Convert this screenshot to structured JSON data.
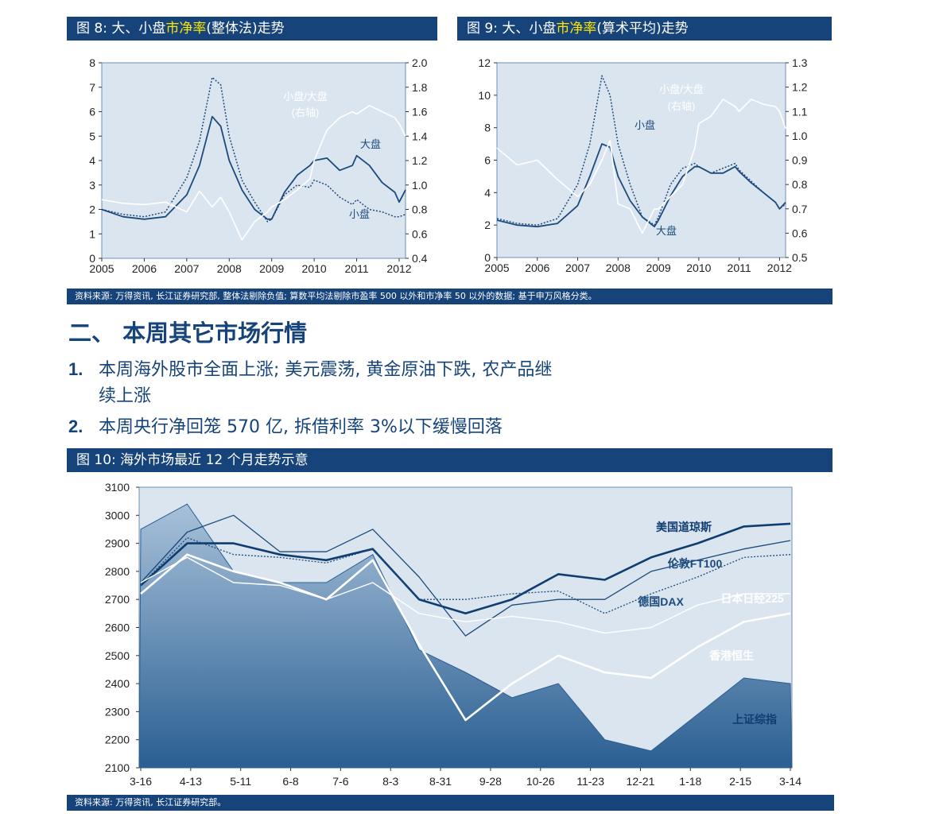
{
  "colors": {
    "bar_bg": "#16447a",
    "highlight": "#ffe600",
    "plot_bg": "#dbe5f0",
    "line_dark": "#1c4a7d",
    "line_white": "#ffffff"
  },
  "fig8": {
    "title_pre": "图 8: 大、小盘",
    "title_hl": "市净率",
    "title_post": "(整体法)走势",
    "chart_data": {
      "type": "line",
      "x_ticks": [
        "2005",
        "2006",
        "2007",
        "2008",
        "2009",
        "2010",
        "2011",
        "2012"
      ],
      "y_left_ticks": [
        "0",
        "1",
        "2",
        "3",
        "4",
        "5",
        "6",
        "7",
        "8"
      ],
      "y_right_ticks": [
        "0.4",
        "0.6",
        "0.8",
        "1.0",
        "1.2",
        "1.4",
        "1.6",
        "1.8",
        "2.0"
      ],
      "ylim_left": [
        0,
        8
      ],
      "ylim_right": [
        0.4,
        2.0
      ],
      "annotations": {
        "ratio": "小盘/大盘",
        "ratio_axis": "(右轴)",
        "large": "大盘",
        "small": "小盘"
      },
      "series": [
        {
          "name": "大盘",
          "axis": "left",
          "style": "solid",
          "x": [
            2005,
            2005.5,
            2006,
            2006.5,
            2007,
            2007.3,
            2007.6,
            2007.8,
            2008,
            2008.3,
            2008.6,
            2008.9,
            2009,
            2009.3,
            2009.6,
            2009.9,
            2010,
            2010.3,
            2010.6,
            2010.9,
            2011,
            2011.3,
            2011.6,
            2011.9,
            2012,
            2012.15
          ],
          "y": [
            2.0,
            1.7,
            1.6,
            1.7,
            2.6,
            3.8,
            5.8,
            5.4,
            4.0,
            2.8,
            2.0,
            1.6,
            1.6,
            2.7,
            3.4,
            3.8,
            4.0,
            4.1,
            3.6,
            3.8,
            4.2,
            3.8,
            3.1,
            2.7,
            2.3,
            2.8
          ]
        },
        {
          "name": "小盘",
          "axis": "left",
          "style": "dotted",
          "x": [
            2005,
            2005.5,
            2006,
            2006.5,
            2007,
            2007.3,
            2007.6,
            2007.8,
            2008,
            2008.3,
            2008.6,
            2008.9,
            2009,
            2009.3,
            2009.6,
            2009.9,
            2010,
            2010.3,
            2010.6,
            2010.9,
            2011,
            2011.3,
            2011.6,
            2011.9,
            2012,
            2012.15
          ],
          "y": [
            2.0,
            1.8,
            1.7,
            1.9,
            3.3,
            4.8,
            7.4,
            7.1,
            5.0,
            3.2,
            2.3,
            1.5,
            1.6,
            2.6,
            3.0,
            2.9,
            3.2,
            3.0,
            2.5,
            2.2,
            2.4,
            2.0,
            1.9,
            1.7,
            1.7,
            1.8
          ]
        },
        {
          "name": "小盘/大盘",
          "axis": "right",
          "style": "white",
          "x": [
            2005,
            2005.5,
            2006,
            2006.5,
            2007,
            2007.3,
            2007.6,
            2007.8,
            2008,
            2008.3,
            2008.6,
            2008.9,
            2009,
            2009.3,
            2009.6,
            2009.9,
            2010,
            2010.3,
            2010.6,
            2010.9,
            2011,
            2011.3,
            2011.6,
            2011.9,
            2012,
            2012.15
          ],
          "y": [
            0.88,
            0.85,
            0.84,
            0.86,
            0.78,
            0.95,
            0.82,
            0.9,
            0.78,
            0.55,
            0.7,
            0.78,
            0.82,
            0.88,
            0.96,
            1.05,
            1.2,
            1.45,
            1.55,
            1.6,
            1.58,
            1.65,
            1.6,
            1.55,
            1.5,
            1.4
          ]
        }
      ]
    }
  },
  "fig9": {
    "title_pre": "图 9: 大、小盘",
    "title_hl": "市净率",
    "title_post": "(算术平均)走势",
    "chart_data": {
      "type": "line",
      "x_ticks": [
        "2005",
        "2006",
        "2007",
        "2008",
        "2009",
        "2010",
        "2011",
        "2012"
      ],
      "y_left_ticks": [
        "0",
        "2",
        "4",
        "6",
        "8",
        "10",
        "12"
      ],
      "y_right_ticks": [
        "0.5",
        "0.6",
        "0.7",
        "0.8",
        "0.9",
        "1.0",
        "1.1",
        "1.2",
        "1.3"
      ],
      "ylim_left": [
        0,
        12
      ],
      "ylim_right": [
        0.5,
        1.3
      ],
      "annotations": {
        "ratio": "小盘/大盘",
        "ratio_axis": "(右轴)",
        "small": "小盘",
        "large": "大盘"
      },
      "series": [
        {
          "name": "大盘",
          "axis": "left",
          "style": "solid",
          "x": [
            2005,
            2005.5,
            2006,
            2006.5,
            2007,
            2007.3,
            2007.6,
            2007.8,
            2008,
            2008.3,
            2008.6,
            2008.9,
            2009,
            2009.3,
            2009.6,
            2009.9,
            2010,
            2010.3,
            2010.6,
            2010.9,
            2011,
            2011.3,
            2011.6,
            2011.9,
            2012,
            2012.15
          ],
          "y": [
            2.3,
            2.0,
            1.9,
            2.1,
            3.2,
            5.0,
            7.0,
            6.8,
            5.0,
            3.5,
            2.5,
            1.9,
            2.3,
            3.8,
            5.0,
            5.6,
            5.6,
            5.2,
            5.2,
            5.6,
            5.3,
            4.6,
            4.0,
            3.4,
            3.0,
            3.4
          ]
        },
        {
          "name": "小盘",
          "axis": "left",
          "style": "dotted",
          "x": [
            2005,
            2005.5,
            2006,
            2006.5,
            2007,
            2007.3,
            2007.6,
            2007.8,
            2008,
            2008.3,
            2008.6,
            2008.9,
            2009,
            2009.3,
            2009.6,
            2009.9,
            2010,
            2010.3,
            2010.6,
            2010.9,
            2011,
            2011.3,
            2011.6,
            2011.9,
            2012,
            2012.15
          ],
          "y": [
            2.4,
            2.1,
            2.0,
            2.4,
            4.5,
            7.0,
            11.2,
            10.0,
            7.0,
            4.5,
            2.5,
            2.0,
            2.5,
            4.5,
            5.5,
            5.8,
            5.6,
            5.2,
            5.5,
            5.8,
            5.4,
            4.7,
            4.0,
            3.4,
            3.0,
            3.3
          ]
        },
        {
          "name": "小盘/大盘",
          "axis": "right",
          "style": "white",
          "x": [
            2005,
            2005.5,
            2006,
            2006.5,
            2007,
            2007.3,
            2007.6,
            2007.8,
            2008,
            2008.3,
            2008.6,
            2008.9,
            2009,
            2009.3,
            2009.6,
            2009.9,
            2010,
            2010.3,
            2010.6,
            2010.9,
            2011,
            2011.3,
            2011.6,
            2011.9,
            2012,
            2012.15
          ],
          "y": [
            0.95,
            0.88,
            0.9,
            0.82,
            0.75,
            0.8,
            0.9,
            0.98,
            0.72,
            0.7,
            0.6,
            0.7,
            0.7,
            0.75,
            0.8,
            0.95,
            1.05,
            1.08,
            1.15,
            1.12,
            1.1,
            1.15,
            1.13,
            1.12,
            1.1,
            1.03
          ]
        }
      ]
    }
  },
  "note1": "资料来源: 万得资讯, 长江证券研究部, 整体法剔除负值; 算数平均法剔除市盈率 500 以外和市净率 50 以外的数据; 基于申万风格分类。",
  "section_heading": "二、 本周其它市场行情",
  "bullets": [
    {
      "num": "1.",
      "text": "本周海外股市全面上涨; 美元震荡, 黄金原油下跌, 农产品继",
      "text2": "续上涨"
    },
    {
      "num": "2.",
      "text": "本周央行净回笼 570 亿, 拆借利率 3%以下缓慢回落"
    }
  ],
  "fig10": {
    "title": "图 10: 海外市场最近 12 个月走势示意",
    "chart_data": {
      "type": "line",
      "x_ticks": [
        "3-16",
        "4-13",
        "5-11",
        "6-8",
        "7-6",
        "8-3",
        "8-31",
        "9-28",
        "10-26",
        "11-23",
        "12-21",
        "1-18",
        "2-15",
        "3-14"
      ],
      "y_ticks": [
        "3100",
        "3000",
        "2900",
        "2800",
        "2700",
        "2600",
        "2500",
        "2400",
        "2300",
        "2200",
        "2100"
      ],
      "ylim": [
        2100,
        3100
      ],
      "series": [
        {
          "name": "美国道琼斯",
          "style": "dark-thick",
          "y": [
            2750,
            2900,
            2900,
            2860,
            2840,
            2880,
            2700,
            2650,
            2700,
            2790,
            2770,
            2850,
            2900,
            2960,
            2970
          ]
        },
        {
          "name": "伦敦FT100",
          "style": "dark-thin",
          "y": [
            2760,
            2940,
            3000,
            2870,
            2870,
            2950,
            2780,
            2570,
            2680,
            2700,
            2700,
            2800,
            2840,
            2880,
            2910
          ]
        },
        {
          "name": "德国DAX",
          "style": "dark-dotted",
          "y": [
            2750,
            2920,
            2860,
            2850,
            2830,
            2880,
            2700,
            2700,
            2720,
            2730,
            2650,
            2720,
            2780,
            2850,
            2860
          ]
        },
        {
          "name": "日本日经225",
          "style": "white-thin",
          "y": [
            2760,
            2850,
            2760,
            2750,
            2700,
            2760,
            2650,
            2620,
            2640,
            2620,
            2580,
            2600,
            2680,
            2720,
            2720
          ]
        },
        {
          "name": "香港恒生",
          "style": "white-thick",
          "y": [
            2720,
            2860,
            2800,
            2760,
            2700,
            2840,
            2540,
            2270,
            2400,
            2500,
            2440,
            2420,
            2530,
            2620,
            2650
          ]
        },
        {
          "name": "上证综指",
          "style": "area",
          "y": [
            2950,
            3040,
            2800,
            2760,
            2760,
            2860,
            2520,
            2440,
            2350,
            2400,
            2200,
            2160,
            2290,
            2420,
            2400
          ]
        }
      ]
    }
  },
  "note2": "资料来源: 万得资讯, 长江证券研究部。"
}
